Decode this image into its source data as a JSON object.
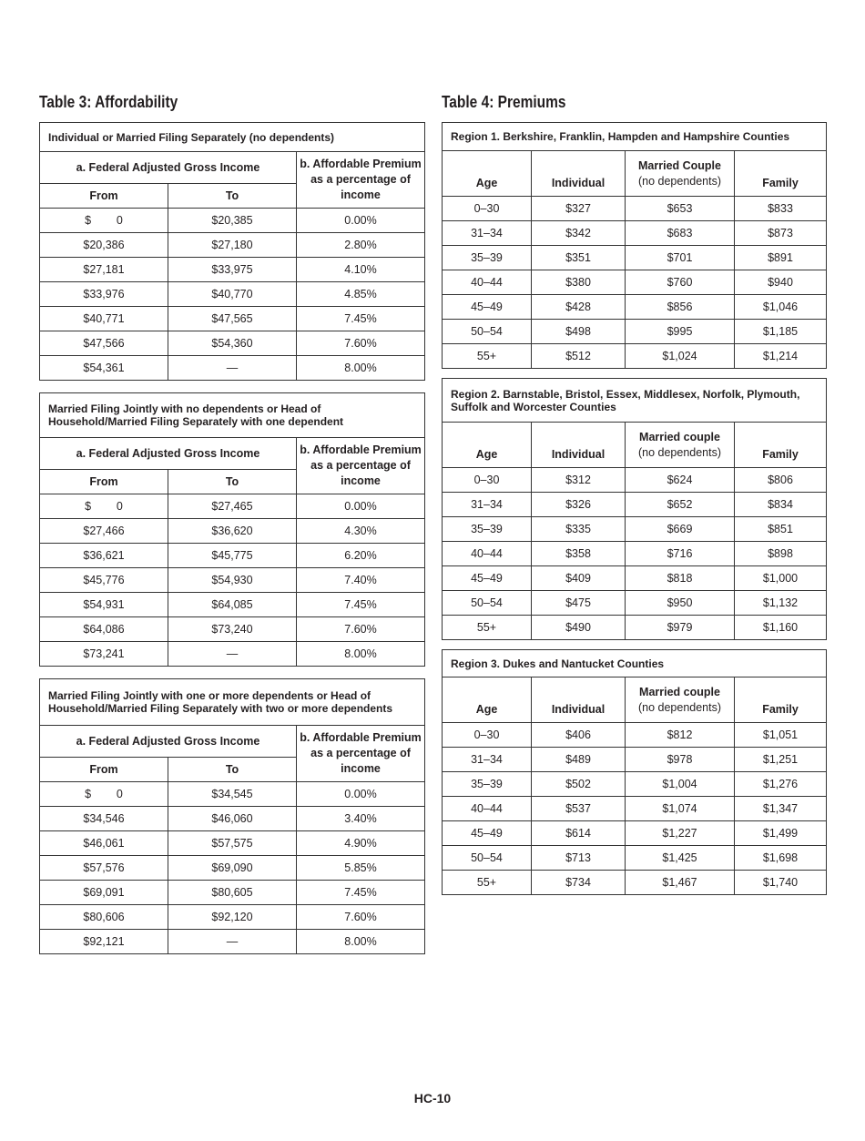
{
  "table3": {
    "title": "Table 3: Affordability",
    "col_a": "a. Federal Adjusted Gross Income",
    "col_b": "b. Affordable Premium as a percentage of income",
    "col_from": "From",
    "col_to": "To",
    "sections": [
      {
        "title": "Individual or Married Filing Separately (no dependents)",
        "rows": [
          [
            "$        0",
            "$20,385",
            "0.00%"
          ],
          [
            "$20,386",
            "$27,180",
            "2.80%"
          ],
          [
            "$27,181",
            "$33,975",
            "4.10%"
          ],
          [
            "$33,976",
            "$40,770",
            "4.85%"
          ],
          [
            "$40,771",
            "$47,565",
            "7.45%"
          ],
          [
            "$47,566",
            "$54,360",
            "7.60%"
          ],
          [
            "$54,361",
            "—",
            "8.00%"
          ]
        ]
      },
      {
        "title": "Married Filing Jointly with no dependents or Head of Household/Married Filing Separately with one dependent",
        "rows": [
          [
            "$        0",
            "$27,465",
            "0.00%"
          ],
          [
            "$27,466",
            "$36,620",
            "4.30%"
          ],
          [
            "$36,621",
            "$45,775",
            "6.20%"
          ],
          [
            "$45,776",
            "$54,930",
            "7.40%"
          ],
          [
            "$54,931",
            "$64,085",
            "7.45%"
          ],
          [
            "$64,086",
            "$73,240",
            "7.60%"
          ],
          [
            "$73,241",
            "—",
            "8.00%"
          ]
        ]
      },
      {
        "title": "Married Filing Jointly with one or more dependents or Head of Household/Married Filing Separately with two or more dependents",
        "rows": [
          [
            "$        0",
            "$34,545",
            "0.00%"
          ],
          [
            "$34,546",
            "$46,060",
            "3.40%"
          ],
          [
            "$46,061",
            "$57,575",
            "4.90%"
          ],
          [
            "$57,576",
            "$69,090",
            "5.85%"
          ],
          [
            "$69,091",
            "$80,605",
            "7.45%"
          ],
          [
            "$80,606",
            "$92,120",
            "7.60%"
          ],
          [
            "$92,121",
            "—",
            "8.00%"
          ]
        ]
      }
    ]
  },
  "table4": {
    "title": "Table 4: Premiums",
    "col_age": "Age",
    "col_individual": "Individual",
    "col_family": "Family",
    "col_married_note": "(no dependents)",
    "regions": [
      {
        "title": "Region 1. Berkshire, Franklin, Hampden and Hampshire Counties",
        "married_label": "Married Couple",
        "rows": [
          [
            "0–30",
            "$327",
            "$653",
            "$833"
          ],
          [
            "31–34",
            "$342",
            "$683",
            "$873"
          ],
          [
            "35–39",
            "$351",
            "$701",
            "$891"
          ],
          [
            "40–44",
            "$380",
            "$760",
            "$940"
          ],
          [
            "45–49",
            "$428",
            "$856",
            "$1,046"
          ],
          [
            "50–54",
            "$498",
            "$995",
            "$1,185"
          ],
          [
            "55+",
            "$512",
            "$1,024",
            "$1,214"
          ]
        ]
      },
      {
        "title": "Region 2. Barnstable, Bristol, Essex, Middlesex, Norfolk, Plymouth, Suffolk and Worcester Counties",
        "married_label": "Married couple",
        "rows": [
          [
            "0–30",
            "$312",
            "$624",
            "$806"
          ],
          [
            "31–34",
            "$326",
            "$652",
            "$834"
          ],
          [
            "35–39",
            "$335",
            "$669",
            "$851"
          ],
          [
            "40–44",
            "$358",
            "$716",
            "$898"
          ],
          [
            "45–49",
            "$409",
            "$818",
            "$1,000"
          ],
          [
            "50–54",
            "$475",
            "$950",
            "$1,132"
          ],
          [
            "55+",
            "$490",
            "$979",
            "$1,160"
          ]
        ]
      },
      {
        "title": "Region 3. Dukes and Nantucket Counties",
        "married_label": "Married couple",
        "rows": [
          [
            "0–30",
            "$406",
            "$812",
            "$1,051"
          ],
          [
            "31–34",
            "$489",
            "$978",
            "$1,251"
          ],
          [
            "35–39",
            "$502",
            "$1,004",
            "$1,276"
          ],
          [
            "40–44",
            "$537",
            "$1,074",
            "$1,347"
          ],
          [
            "45–49",
            "$614",
            "$1,227",
            "$1,499"
          ],
          [
            "50–54",
            "$713",
            "$1,425",
            "$1,698"
          ],
          [
            "55+",
            "$734",
            "$1,467",
            "$1,740"
          ]
        ]
      }
    ]
  },
  "footer": {
    "page": "HC-10"
  }
}
